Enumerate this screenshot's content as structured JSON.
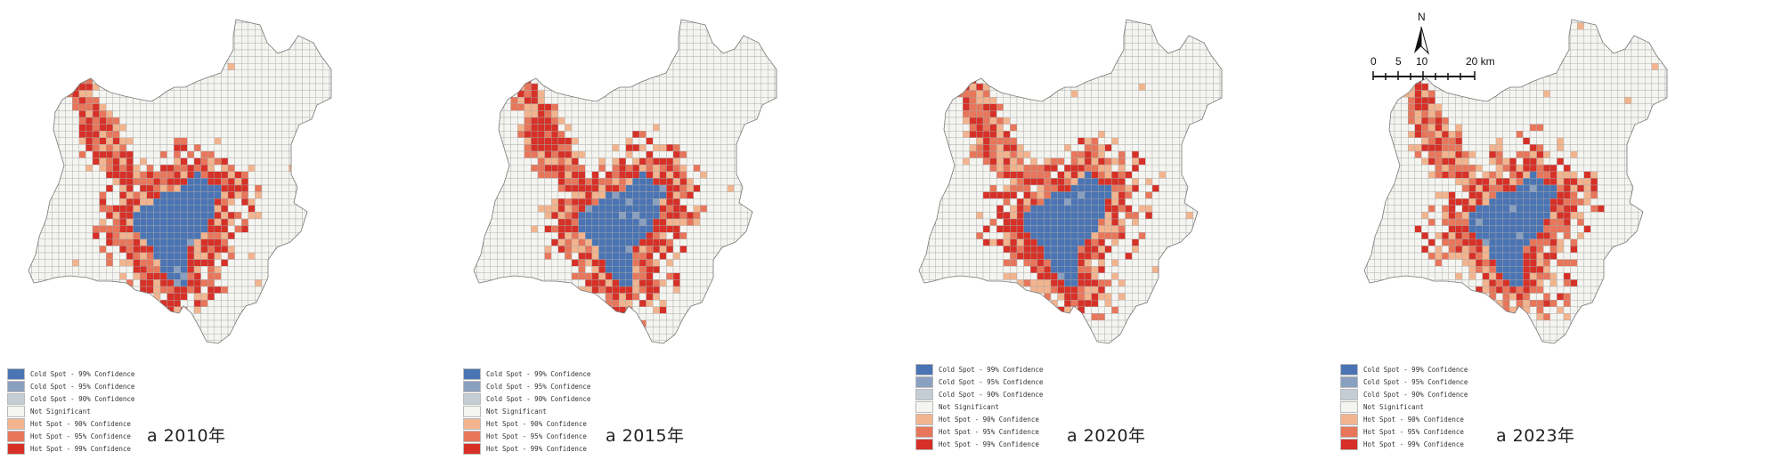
{
  "panels": [
    {
      "caption": "a 2010年",
      "year": 2010
    },
    {
      "caption": "a 2015年",
      "year": 2015
    },
    {
      "caption": "a 2020年",
      "year": 2020
    },
    {
      "caption": "a 2023年",
      "year": 2023
    }
  ],
  "legend": [
    {
      "label": "Cold Spot - 99% Confidence",
      "color": "#4a74b4"
    },
    {
      "label": "Cold Spot - 95% Confidence",
      "color": "#8aa0c0"
    },
    {
      "label": "Cold Spot - 90% Confidence",
      "color": "#c4ccd4"
    },
    {
      "label": "Not Significant",
      "color": "#f4f4f0"
    },
    {
      "label": "Hot Spot - 90% Confidence",
      "color": "#f2b48e"
    },
    {
      "label": "Hot Spot - 95% Confidence",
      "color": "#e8765a"
    },
    {
      "label": "Hot Spot - 99% Confidence",
      "color": "#d73027"
    }
  ],
  "north_arrow": {
    "label": "N"
  },
  "scale_bar": {
    "ticks": [
      "0",
      "5",
      "10",
      "20 km"
    ]
  }
}
